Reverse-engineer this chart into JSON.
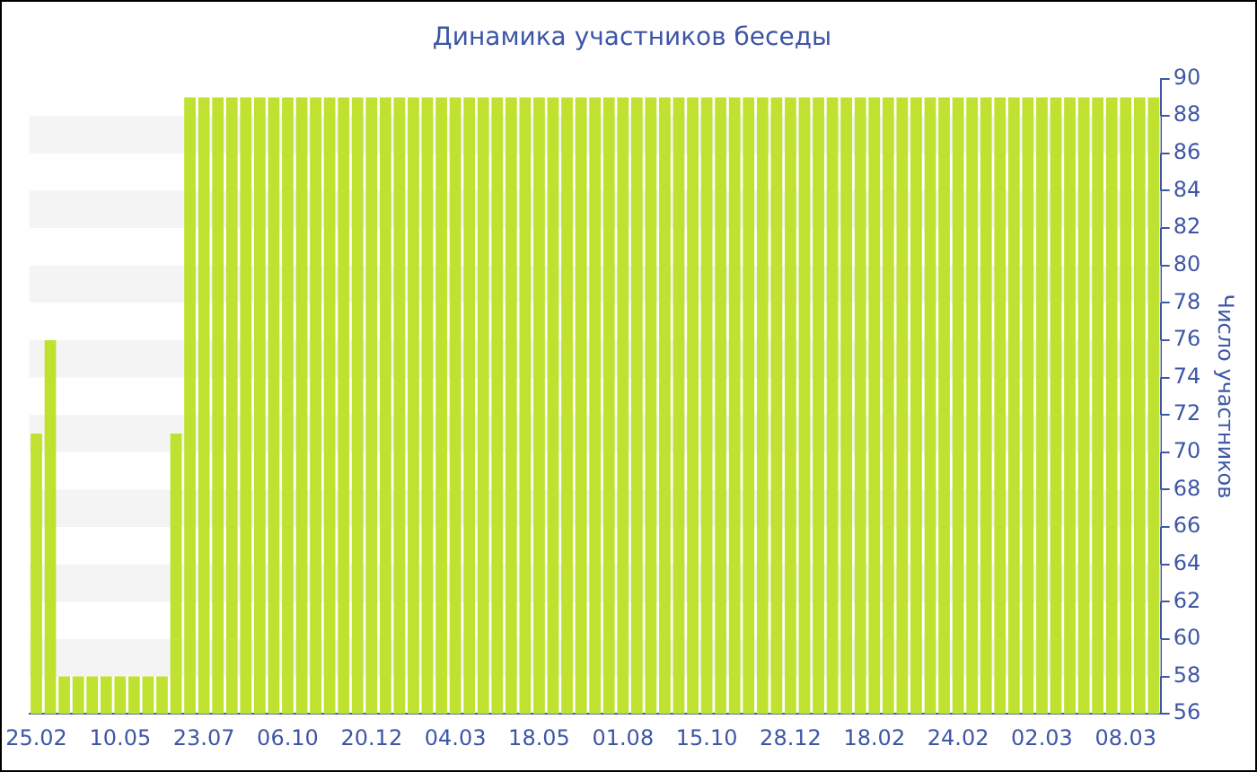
{
  "chart_data": {
    "type": "bar",
    "title": "Динамика участников беседы",
    "ylabel": "Число участников",
    "categories": [
      "25.02",
      null,
      null,
      null,
      null,
      null,
      "10.05",
      null,
      null,
      null,
      null,
      null,
      "23.07",
      null,
      null,
      null,
      null,
      null,
      "06.10",
      null,
      null,
      null,
      null,
      null,
      "20.12",
      null,
      null,
      null,
      null,
      null,
      "04.03",
      null,
      null,
      null,
      null,
      null,
      "18.05",
      null,
      null,
      null,
      null,
      null,
      "01.08",
      null,
      null,
      null,
      null,
      null,
      "15.10",
      null,
      null,
      null,
      null,
      null,
      "28.12",
      null,
      null,
      null,
      null,
      null,
      "18.02",
      null,
      null,
      null,
      null,
      null,
      "24.02",
      null,
      null,
      null,
      null,
      null,
      "02.03",
      null,
      null,
      null,
      null,
      null,
      "08.03",
      null,
      null
    ],
    "values": [
      71,
      76,
      58,
      58,
      58,
      58,
      58,
      58,
      58,
      58,
      71,
      89,
      89,
      89,
      89,
      89,
      89,
      89,
      89,
      89,
      89,
      89,
      89,
      89,
      89,
      89,
      89,
      89,
      89,
      89,
      89,
      89,
      89,
      89,
      89,
      89,
      89,
      89,
      89,
      89,
      89,
      89,
      89,
      89,
      89,
      89,
      89,
      89,
      89,
      89,
      89,
      89,
      89,
      89,
      89,
      89,
      89,
      89,
      89,
      89,
      89,
      89,
      89,
      89,
      89,
      89,
      89,
      89,
      89,
      89,
      89,
      89,
      89,
      89,
      89,
      89,
      89,
      89,
      89,
      89,
      89
    ],
    "color": "#bfe12f",
    "ylim": [
      56,
      90
    ],
    "yticks": [
      56,
      58,
      60,
      62,
      64,
      66,
      68,
      70,
      72,
      74,
      76,
      78,
      80,
      82,
      84,
      86,
      88,
      90
    ],
    "legend": false
  }
}
